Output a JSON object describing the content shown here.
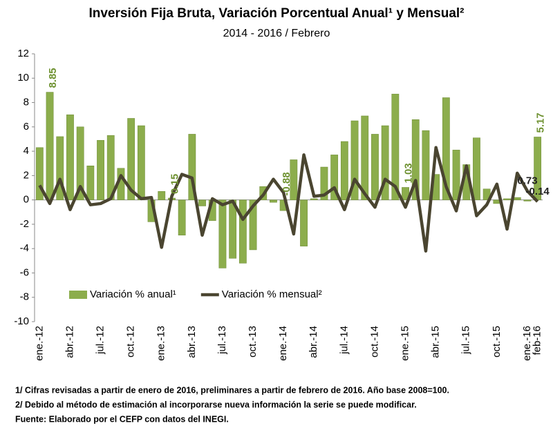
{
  "chart_data": {
    "type": "bar_line",
    "title": "Inversión Fija Bruta, Variación Porcentual Anual¹ y Mensual²",
    "subtitle": "2014 - 2016 / Febrero",
    "categories": [
      "ene.-12",
      null,
      null,
      "abr.-12",
      null,
      null,
      "jul.-12",
      null,
      null,
      "oct.-12",
      null,
      null,
      "ene.-13",
      null,
      null,
      "abr.-13",
      null,
      null,
      "jul.-13",
      null,
      null,
      "oct.-13",
      null,
      null,
      "ene.-14",
      null,
      null,
      "abr.-14",
      null,
      null,
      "jul.-14",
      null,
      null,
      "oct.-14",
      null,
      null,
      "ene.-15",
      null,
      null,
      "abr.-15",
      null,
      null,
      "jul.-15",
      null,
      null,
      "oct.-15",
      null,
      null,
      "ene.-16",
      "feb-16"
    ],
    "series": [
      {
        "name": "Variación % anual¹",
        "kind": "bar",
        "color": "#8cad4c",
        "label_color": "#6e9130",
        "values": [
          4.3,
          8.85,
          5.2,
          7.0,
          6.0,
          2.8,
          4.9,
          5.3,
          2.6,
          6.7,
          6.1,
          -1.8,
          0.7,
          0.15,
          -2.9,
          5.4,
          -0.5,
          -1.7,
          -5.6,
          -4.8,
          -5.2,
          -4.1,
          1.1,
          -0.2,
          -0.88,
          3.3,
          -3.8,
          0.1,
          2.7,
          3.7,
          4.8,
          6.5,
          6.9,
          5.4,
          6.1,
          8.7,
          1.03,
          6.6,
          5.7,
          2.1,
          8.4,
          4.1,
          2.9,
          5.1,
          0.9,
          -0.3,
          0.1,
          0.2,
          -0.1,
          5.17
        ],
        "value_labels": [
          null,
          "8.85",
          null,
          null,
          null,
          null,
          null,
          null,
          null,
          null,
          null,
          null,
          null,
          "0.15",
          null,
          null,
          null,
          null,
          null,
          null,
          null,
          null,
          null,
          null,
          "-0.88",
          null,
          null,
          null,
          null,
          null,
          null,
          null,
          null,
          null,
          null,
          null,
          "1.03",
          null,
          null,
          null,
          null,
          null,
          null,
          null,
          null,
          null,
          null,
          null,
          null,
          "5.17"
        ]
      },
      {
        "name": "Variación % mensual²",
        "kind": "line",
        "color": "#4a4530",
        "label_color": "#222222",
        "values": [
          1.2,
          -0.3,
          1.7,
          -0.8,
          1.1,
          -0.4,
          -0.3,
          0.1,
          2.0,
          0.8,
          0.1,
          0.2,
          -3.9,
          0.3,
          2.1,
          1.8,
          -2.9,
          0.1,
          -0.4,
          -0.1,
          -1.6,
          -0.5,
          0.4,
          1.7,
          0.6,
          -2.8,
          3.7,
          0.3,
          0.4,
          1.0,
          -0.8,
          1.7,
          0.5,
          -0.6,
          1.7,
          1.1,
          -0.6,
          1.6,
          -4.2,
          4.3,
          1.1,
          -0.9,
          2.8,
          -1.3,
          -0.4,
          1.3,
          -2.4,
          2.2,
          0.73,
          -0.14
        ],
        "value_labels": [
          null,
          null,
          null,
          null,
          null,
          null,
          null,
          null,
          null,
          null,
          null,
          null,
          null,
          null,
          null,
          null,
          null,
          null,
          null,
          null,
          null,
          null,
          null,
          null,
          null,
          null,
          null,
          null,
          null,
          null,
          null,
          null,
          null,
          null,
          null,
          null,
          null,
          null,
          null,
          null,
          null,
          null,
          null,
          null,
          null,
          null,
          null,
          null,
          "0.73",
          "-0.14"
        ]
      }
    ],
    "ylim": [
      -10,
      12
    ],
    "yticks": [
      -10,
      -8,
      -6,
      -4,
      -2,
      0,
      2,
      4,
      6,
      8,
      10,
      12
    ],
    "legend": "lower left",
    "notes": [
      "1/ Cifras revisadas a partir de enero de 2016, preliminares a partir de febrero de 2016. Año base 2008=100.",
      "2/ Debido al método de estimación al incorporarse nueva información la serie se puede modificar.",
      "Fuente: Elaborado por el CEFP con datos del INEGI."
    ]
  }
}
